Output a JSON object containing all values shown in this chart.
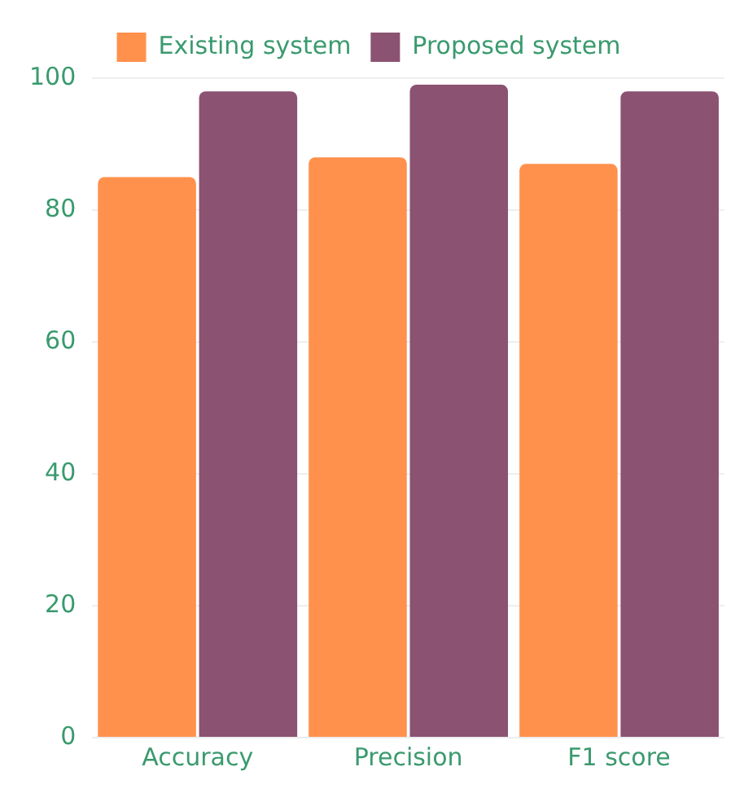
{
  "chart_data": {
    "type": "bar",
    "categories": [
      "Accuracy",
      "Precision",
      "F1 score"
    ],
    "series": [
      {
        "name": "Existing system",
        "color": "#ff914d",
        "values": [
          85,
          88,
          87
        ]
      },
      {
        "name": "Proposed system",
        "color": "#8b5272",
        "values": [
          98,
          99,
          98
        ]
      }
    ],
    "ylim": [
      0,
      100
    ],
    "yticks": [
      0,
      20,
      40,
      60,
      80,
      100
    ],
    "grid": "y",
    "legend": "top"
  }
}
